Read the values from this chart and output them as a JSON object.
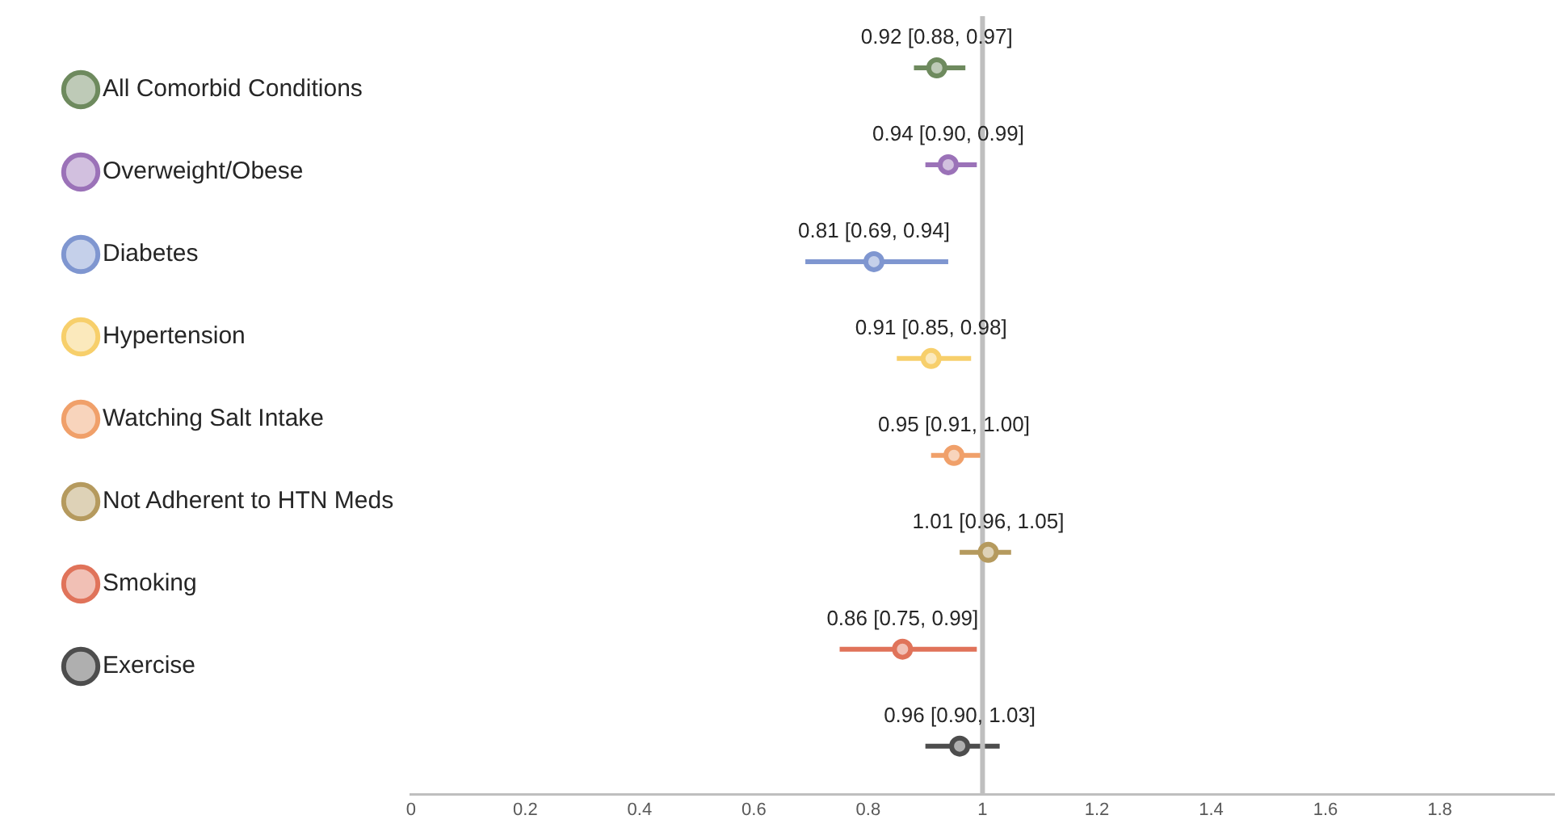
{
  "chart_data": {
    "type": "scatter",
    "orientation": "horizontal",
    "categories": [
      null,
      null,
      null,
      null,
      null,
      null,
      null,
      null
    ],
    "xlim": [
      0,
      2
    ],
    "xticks": [
      0,
      0.2,
      0.4,
      0.6,
      0.8,
      1,
      1.2,
      1.4,
      1.6,
      1.8
    ],
    "grid": false,
    "legend": "left",
    "marker": "circle",
    "ref_lines": [
      {
        "axis": "x",
        "value": 1,
        "color": "#bfbfbf"
      }
    ],
    "series": [
      {
        "name": "All Comorbid Conditions",
        "color": "#6e8a5e",
        "values": [
          0.92,
          null,
          null,
          null,
          null,
          null,
          null,
          null
        ],
        "errors": [
          [
            0.88,
            0.97
          ],
          null,
          null,
          null,
          null,
          null,
          null,
          null
        ],
        "value_labels": [
          "0.92 [0.88, 0.97]",
          null,
          null,
          null,
          null,
          null,
          null,
          null
        ]
      },
      {
        "name": "Overweight/Obese",
        "color": "#9b72b8",
        "values": [
          null,
          0.94,
          null,
          null,
          null,
          null,
          null,
          null
        ],
        "errors": [
          null,
          [
            0.9,
            0.99
          ],
          null,
          null,
          null,
          null,
          null,
          null
        ],
        "value_labels": [
          null,
          "0.94 [0.90, 0.99]",
          null,
          null,
          null,
          null,
          null,
          null
        ]
      },
      {
        "name": "Diabetes",
        "color": "#7f96d0",
        "values": [
          null,
          null,
          0.81,
          null,
          null,
          null,
          null,
          null
        ],
        "errors": [
          null,
          null,
          [
            0.69,
            0.94
          ],
          null,
          null,
          null,
          null,
          null
        ],
        "value_labels": [
          null,
          null,
          "0.81 [0.69, 0.94]",
          null,
          null,
          null,
          null,
          null
        ]
      },
      {
        "name": "Hypertension",
        "color": "#f7cf6b",
        "values": [
          null,
          null,
          null,
          0.91,
          null,
          null,
          null,
          null
        ],
        "errors": [
          null,
          null,
          null,
          [
            0.85,
            0.98
          ],
          null,
          null,
          null,
          null
        ],
        "value_labels": [
          null,
          null,
          null,
          "0.91 [0.85, 0.98]",
          null,
          null,
          null,
          null
        ]
      },
      {
        "name": "Watching Salt Intake",
        "color": "#f0a06a",
        "values": [
          null,
          null,
          null,
          null,
          0.95,
          null,
          null,
          null
        ],
        "errors": [
          null,
          null,
          null,
          null,
          [
            0.91,
            1.0
          ],
          null,
          null,
          null
        ],
        "value_labels": [
          null,
          null,
          null,
          null,
          "0.95 [0.91, 1.00]",
          null,
          null,
          null
        ]
      },
      {
        "name": "Not Adherent to HTN Meds",
        "color": "#b59a5e",
        "values": [
          null,
          null,
          null,
          null,
          null,
          1.01,
          null,
          null
        ],
        "errors": [
          null,
          null,
          null,
          null,
          null,
          [
            0.96,
            1.05
          ],
          null,
          null
        ],
        "value_labels": [
          null,
          null,
          null,
          null,
          null,
          "1.01 [0.96, 1.05]",
          null,
          null
        ]
      },
      {
        "name": "Smoking",
        "color": "#e0735a",
        "values": [
          null,
          null,
          null,
          null,
          null,
          null,
          0.86,
          null
        ],
        "errors": [
          null,
          null,
          null,
          null,
          null,
          null,
          [
            0.75,
            0.99
          ],
          null
        ],
        "value_labels": [
          null,
          null,
          null,
          null,
          null,
          null,
          "0.86 [0.75, 0.99]",
          null
        ]
      },
      {
        "name": "Exercise",
        "color": "#4d4d4d",
        "values": [
          null,
          null,
          null,
          null,
          null,
          null,
          null,
          0.96
        ],
        "errors": [
          null,
          null,
          null,
          null,
          null,
          null,
          null,
          [
            0.9,
            1.03
          ]
        ],
        "value_labels": [
          null,
          null,
          null,
          null,
          null,
          null,
          null,
          "0.96 [0.90, 1.03]"
        ]
      }
    ]
  }
}
